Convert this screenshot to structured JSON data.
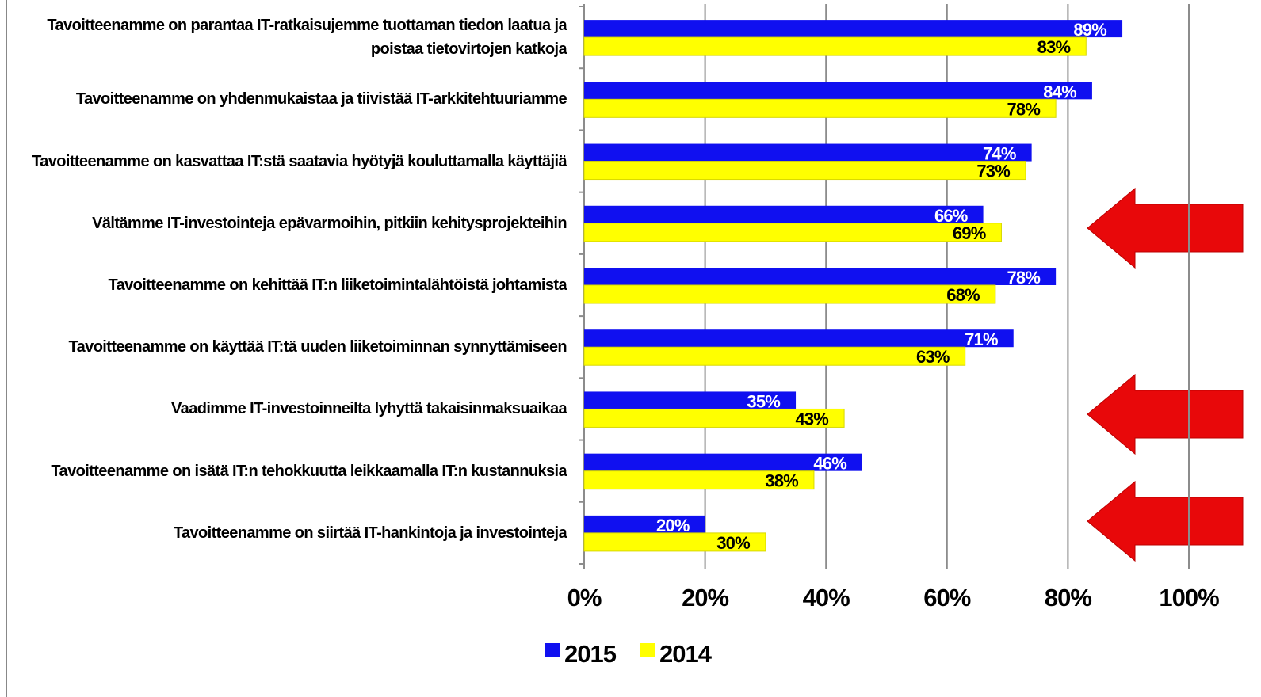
{
  "chart_data": {
    "type": "bar",
    "orientation": "horizontal",
    "categories": [
      "Tavoitteenamme on parantaa IT-ratkaisujemme tuottaman tiedon laatua ja poistaa tietovirtojen katkoja",
      "Tavoitteenamme on yhdenmukaistaa ja tiivistää IT-arkkitehtuuriamme",
      "Tavoitteenamme on kasvattaa IT:stä saatavia hyötyjä kouluttamalla käyttäjiä",
      "Vältämme IT-investointeja epävarmoihin, pitkiin kehitysprojekteihin",
      "Tavoitteenamme on kehittää IT:n liiketoimintalähtöistä johtamista",
      "Tavoitteenamme on käyttää IT:tä uuden liiketoiminnan synnyttämiseen",
      "Vaadimme IT-investoinneilta lyhyttä takaisinmaksuaikaa",
      "Tavoitteenamme on isätä IT:n tehokkuutta leikkaamalla IT:n kustannuksia",
      "Tavoitteenamme on siirtää IT-hankintoja ja investointeja"
    ],
    "series": [
      {
        "name": "2015",
        "color": "#1010f0",
        "values": [
          89,
          84,
          74,
          66,
          78,
          71,
          35,
          46,
          20
        ],
        "value_labels": [
          "89%",
          "84%",
          "74%",
          "66%",
          "78%",
          "71%",
          "35%",
          "46%",
          "20%"
        ]
      },
      {
        "name": "2014",
        "color": "#ffff00",
        "values": [
          83,
          78,
          73,
          69,
          68,
          63,
          43,
          38,
          30
        ],
        "value_labels": [
          "83%",
          "78%",
          "73%",
          "69%",
          "68%",
          "63%",
          "43%",
          "38%",
          "30%"
        ]
      }
    ],
    "xlim": [
      0,
      100
    ],
    "xticks": [
      {
        "value": 0,
        "label": "0%"
      },
      {
        "value": 20,
        "label": "20%"
      },
      {
        "value": 40,
        "label": "40%"
      },
      {
        "value": 60,
        "label": "60%"
      },
      {
        "value": 80,
        "label": "80%"
      },
      {
        "value": 100,
        "label": "100%"
      }
    ],
    "grid": true,
    "legend": "bottom"
  }
}
